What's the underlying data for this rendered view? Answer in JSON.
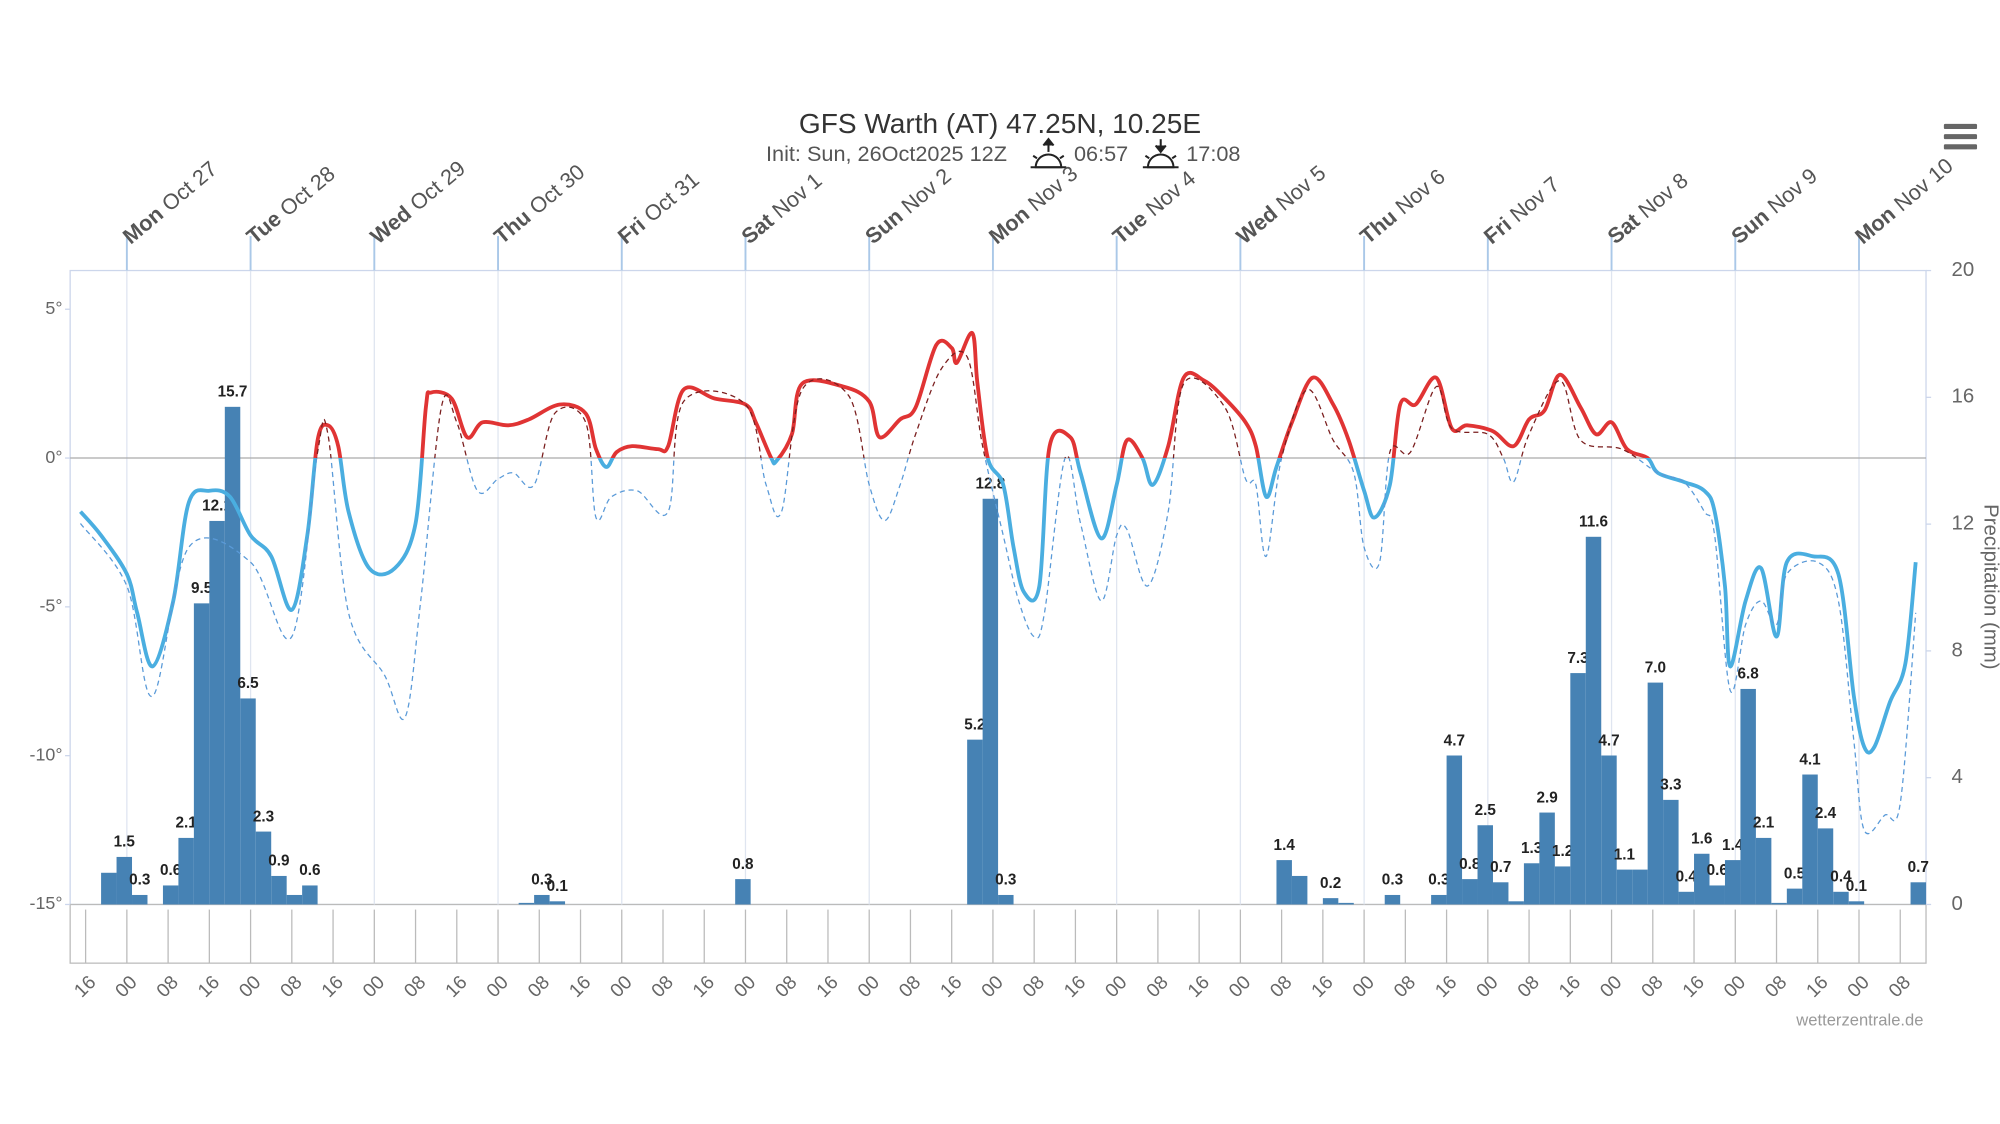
{
  "chart_data": {
    "type": "combo",
    "title": "GFS Warth (AT) 47.25N, 10.25E",
    "subtitle": "Init: Sun, 26Oct2025 12Z",
    "sunrise": "06:57",
    "sunset": "17:08",
    "credit": "wetterzentrale.de",
    "y2label": "Precipitation (mm)",
    "xlim": [
      -11,
      349
    ],
    "xticks": [
      {
        "value": -8,
        "label": "16"
      },
      {
        "value": 0,
        "label": "00"
      },
      {
        "value": 8,
        "label": "08"
      },
      {
        "value": 16,
        "label": "16"
      },
      {
        "value": 24,
        "label": "00"
      },
      {
        "value": 32,
        "label": "08"
      },
      {
        "value": 40,
        "label": "16"
      },
      {
        "value": 48,
        "label": "00"
      },
      {
        "value": 56,
        "label": "08"
      },
      {
        "value": 64,
        "label": "16"
      },
      {
        "value": 72,
        "label": "00"
      },
      {
        "value": 80,
        "label": "08"
      },
      {
        "value": 88,
        "label": "16"
      },
      {
        "value": 96,
        "label": "00"
      },
      {
        "value": 104,
        "label": "08"
      },
      {
        "value": 112,
        "label": "16"
      },
      {
        "value": 120,
        "label": "00"
      },
      {
        "value": 128,
        "label": "08"
      },
      {
        "value": 136,
        "label": "16"
      },
      {
        "value": 144,
        "label": "00"
      },
      {
        "value": 152,
        "label": "08"
      },
      {
        "value": 160,
        "label": "16"
      },
      {
        "value": 168,
        "label": "00"
      },
      {
        "value": 176,
        "label": "08"
      },
      {
        "value": 184,
        "label": "16"
      },
      {
        "value": 192,
        "label": "00"
      },
      {
        "value": 200,
        "label": "08"
      },
      {
        "value": 208,
        "label": "16"
      },
      {
        "value": 216,
        "label": "00"
      },
      {
        "value": 224,
        "label": "08"
      },
      {
        "value": 232,
        "label": "16"
      },
      {
        "value": 240,
        "label": "00"
      },
      {
        "value": 248,
        "label": "08"
      },
      {
        "value": 256,
        "label": "16"
      },
      {
        "value": 264,
        "label": "00"
      },
      {
        "value": 272,
        "label": "08"
      },
      {
        "value": 280,
        "label": "16"
      },
      {
        "value": 288,
        "label": "00"
      },
      {
        "value": 296,
        "label": "08"
      },
      {
        "value": 304,
        "label": "16"
      },
      {
        "value": 312,
        "label": "00"
      },
      {
        "value": 320,
        "label": "08"
      },
      {
        "value": 328,
        "label": "16"
      },
      {
        "value": 336,
        "label": "00"
      },
      {
        "value": 344,
        "label": "08"
      }
    ],
    "days": [
      {
        "value": 0,
        "weekday": "Mon",
        "date": "Oct 27"
      },
      {
        "value": 24,
        "weekday": "Tue",
        "date": "Oct 28"
      },
      {
        "value": 48,
        "weekday": "Wed",
        "date": "Oct 29"
      },
      {
        "value": 72,
        "weekday": "Thu",
        "date": "Oct 30"
      },
      {
        "value": 96,
        "weekday": "Fri",
        "date": "Oct 31"
      },
      {
        "value": 120,
        "weekday": "Sat",
        "date": "Nov 1"
      },
      {
        "value": 144,
        "weekday": "Sun",
        "date": "Nov 2"
      },
      {
        "value": 168,
        "weekday": "Mon",
        "date": "Nov 3"
      },
      {
        "value": 192,
        "weekday": "Tue",
        "date": "Nov 4"
      },
      {
        "value": 216,
        "weekday": "Wed",
        "date": "Nov 5"
      },
      {
        "value": 240,
        "weekday": "Thu",
        "date": "Nov 6"
      },
      {
        "value": 264,
        "weekday": "Fri",
        "date": "Nov 7"
      },
      {
        "value": 288,
        "weekday": "Sat",
        "date": "Nov 8"
      },
      {
        "value": 312,
        "weekday": "Sun",
        "date": "Nov 9"
      },
      {
        "value": 336,
        "weekday": "Mon",
        "date": "Nov 10"
      }
    ],
    "ylim": [
      -15,
      6.3
    ],
    "yticks": [
      {
        "value": -15,
        "label": "-15°"
      },
      {
        "value": -10,
        "label": "-10°"
      },
      {
        "value": -5,
        "label": "-5°"
      },
      {
        "value": 0,
        "label": "0°"
      },
      {
        "value": 5,
        "label": "5°"
      }
    ],
    "zero_line": true,
    "y2lim": [
      0,
      20
    ],
    "y2ticks": [
      0,
      4,
      8,
      12,
      16,
      20
    ],
    "series": [
      {
        "type": "line",
        "color": "#4aaee0",
        "color_above_zero": "#e03434",
        "width": 3,
        "x": [
          -9,
          -5,
          0,
          2,
          5,
          9,
          12,
          16,
          20,
          24,
          28,
          32,
          35,
          37,
          39,
          41,
          43,
          47,
          52,
          56,
          58,
          59,
          63,
          66,
          69,
          74,
          78,
          84,
          89,
          91,
          93,
          95,
          98,
          103,
          105,
          108,
          114,
          120,
          122,
          125,
          126,
          129,
          131,
          139,
          144,
          146,
          150,
          153,
          157,
          160,
          161,
          164,
          165,
          167,
          170,
          172,
          174,
          177,
          179,
          183,
          185,
          189,
          192,
          194,
          197,
          199,
          202,
          205,
          209,
          213,
          217,
          219,
          221,
          223,
          226,
          230,
          234,
          237,
          240,
          242,
          245,
          247,
          250,
          254,
          257,
          260,
          265,
          269,
          272,
          275,
          278,
          282,
          285,
          288,
          291,
          295,
          297,
          302,
          306,
          308,
          310,
          311,
          314,
          317,
          320,
          322,
          327,
          332,
          335,
          337,
          339,
          342,
          345,
          347
        ],
        "values": [
          -1.8,
          -2.6,
          -3.9,
          -5.2,
          -7.0,
          -4.8,
          -1.5,
          -1.1,
          -1.3,
          -2.6,
          -3.3,
          -5.1,
          -2.6,
          0.6,
          1.1,
          0.4,
          -1.8,
          -3.7,
          -3.7,
          -2.2,
          1.7,
          2.2,
          2.0,
          0.7,
          1.2,
          1.1,
          1.3,
          1.8,
          1.5,
          0.3,
          -0.3,
          0.2,
          0.4,
          0.3,
          0.4,
          2.3,
          2.0,
          1.8,
          1.2,
          0.0,
          -0.1,
          0.8,
          2.5,
          2.4,
          1.9,
          0.7,
          1.3,
          1.7,
          3.8,
          3.7,
          3.2,
          4.2,
          2.5,
          0.0,
          -0.9,
          -3.0,
          -4.5,
          -4.3,
          0.4,
          0.7,
          -0.5,
          -2.7,
          -0.9,
          0.6,
          0.0,
          -0.9,
          0.4,
          2.7,
          2.6,
          2.0,
          1.2,
          0.4,
          -1.3,
          -0.3,
          1.2,
          2.7,
          1.8,
          0.6,
          -1.1,
          -2.0,
          -0.9,
          1.8,
          1.8,
          2.7,
          1.0,
          1.1,
          0.9,
          0.4,
          1.3,
          1.6,
          2.8,
          1.7,
          0.8,
          1.2,
          0.3,
          0.0,
          -0.5,
          -0.8,
          -1.1,
          -1.8,
          -4.3,
          -7.0,
          -4.8,
          -3.7,
          -6.0,
          -3.5,
          -3.3,
          -3.9,
          -8.0,
          -9.7,
          -9.7,
          -8.2,
          -6.9,
          -3.5
        ]
      },
      {
        "type": "line",
        "color": "#5a9ad8",
        "color_above_zero": "#7a1e1e",
        "width": 1,
        "dashed": true,
        "x": [
          -9,
          0,
          5,
          12,
          24,
          32,
          37,
          39,
          43,
          50,
          54,
          57,
          61,
          64,
          68,
          72,
          75,
          79,
          83,
          89,
          91,
          94,
          99,
          105,
          108,
          120,
          124,
          127,
          131,
          140,
          144,
          147,
          150,
          153,
          158,
          163,
          166,
          170,
          173,
          176,
          178,
          182,
          185,
          189,
          192,
          194,
          198,
          202,
          205,
          213,
          217,
          219,
          221,
          224,
          229,
          234,
          238,
          240,
          243,
          245,
          249,
          254,
          257,
          264,
          267,
          269,
          272,
          278,
          282,
          290,
          297,
          302,
          306,
          308,
          311,
          314,
          317,
          320,
          322,
          328,
          332,
          335,
          337,
          341,
          344,
          347
        ],
        "values": [
          -2.2,
          -4.3,
          -8.0,
          -3.0,
          -3.5,
          -6.0,
          0.2,
          0.8,
          -5.2,
          -7.3,
          -8.7,
          -4.8,
          1.7,
          1.2,
          -1.1,
          -0.7,
          -0.5,
          -0.9,
          1.5,
          1.2,
          -2.0,
          -1.3,
          -1.1,
          -1.8,
          1.9,
          1.8,
          -0.9,
          -1.8,
          2.3,
          2.1,
          -0.9,
          -2.1,
          -0.9,
          0.8,
          3.0,
          3.4,
          0.4,
          -2.6,
          -4.8,
          -6.0,
          -5.2,
          0.0,
          -2.2,
          -4.8,
          -2.6,
          -2.4,
          -4.3,
          -1.8,
          2.5,
          1.7,
          -0.7,
          -0.9,
          -3.3,
          0.0,
          2.3,
          0.6,
          -0.5,
          -3.0,
          -3.5,
          0.2,
          0.2,
          2.4,
          1.0,
          0.8,
          0.0,
          -0.8,
          0.8,
          2.6,
          0.6,
          0.3,
          -0.5,
          -0.8,
          -1.8,
          -2.6,
          -7.8,
          -5.6,
          -4.8,
          -5.6,
          -3.9,
          -3.5,
          -4.8,
          -9.5,
          -12.5,
          -12.0,
          -11.6,
          -5.2
        ]
      },
      {
        "type": "bar",
        "axis": "y2",
        "color": "#4682b4",
        "x": [
          -2,
          1,
          4,
          10,
          13,
          16,
          19,
          22,
          25,
          28,
          31,
          34,
          37,
          79,
          82,
          85,
          121,
          166,
          169,
          172,
          226,
          229,
          235,
          238,
          247,
          256,
          259,
          262,
          265,
          268,
          271,
          274,
          277,
          280,
          283,
          286,
          289,
          292,
          295,
          298,
          301,
          304,
          307,
          310,
          313,
          316,
          319,
          322,
          325,
          328,
          331,
          334,
          337,
          349
        ],
        "values": [
          1.0,
          1.5,
          0.3,
          0.6,
          2.1,
          9.5,
          12.1,
          15.7,
          6.5,
          2.3,
          0.9,
          0.3,
          0.6,
          0.05,
          0.3,
          0.1,
          0.8,
          5.2,
          12.8,
          0.3,
          1.4,
          0.9,
          0.2,
          0.05,
          0.3,
          0.3,
          4.7,
          0.8,
          2.5,
          0.7,
          0.1,
          1.3,
          2.9,
          1.2,
          7.3,
          11.6,
          4.7,
          1.1,
          1.1,
          7.0,
          3.3,
          0.4,
          1.6,
          0.6,
          1.4,
          6.8,
          2.1,
          0.05,
          0.5,
          4.1,
          2.4,
          0.4,
          0.1,
          0.7
        ],
        "value_labels": [
          null,
          "1.5",
          "0.3",
          "0.6",
          "2.1",
          "9.5",
          "12.1",
          "15.7",
          "6.5",
          "2.3",
          "0.9",
          null,
          "0.6",
          null,
          "0.3",
          "0.1",
          "0.8",
          "5.2",
          "12.8",
          "0.3",
          "1.4",
          null,
          "0.2",
          null,
          "0.3",
          "0.3",
          "4.7",
          "0.8",
          "2.5",
          "0.7",
          null,
          "1.3",
          "2.9",
          "1.2",
          "7.3",
          "11.6",
          "4.7",
          "1.1",
          null,
          "7.0",
          "3.3",
          "0.4",
          "1.6",
          "0.6",
          "1.4",
          "6.8",
          "2.1",
          null,
          "0.5",
          "4.1",
          "2.4",
          "0.4",
          "0.1",
          "0.7"
        ]
      }
    ]
  }
}
